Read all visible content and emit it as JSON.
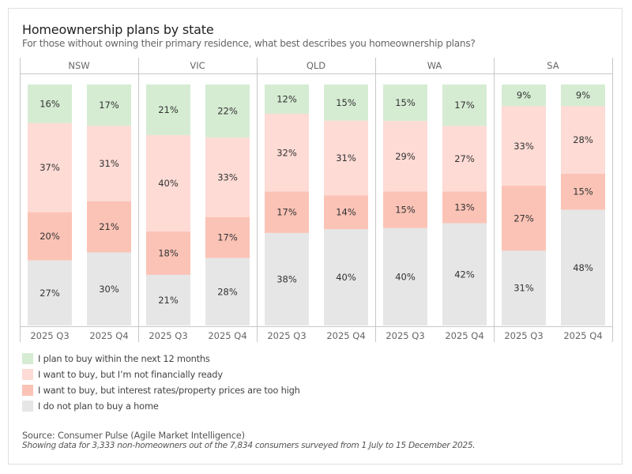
{
  "header": {
    "title": "Homeownership plans by state",
    "subtitle": "For those without owning their primary residence, what best describes you homeownership plans?"
  },
  "chart_data": {
    "type": "bar",
    "stacked": true,
    "normalized": true,
    "title": "Homeownership plans by state",
    "subtitle": "For those without owning their primary residence, what best describes you homeownership plans?",
    "xlabel": "",
    "ylabel": "",
    "ylim": [
      0,
      100
    ],
    "grid": false,
    "legend_position": "bottom-left",
    "panels": [
      "NSW",
      "VIC",
      "QLD",
      "WA",
      "SA"
    ],
    "categories": [
      "2025 Q3",
      "2025 Q4"
    ],
    "series": [
      {
        "name": "I plan to buy within the next 12 months",
        "color": "#d5ecd2",
        "values": {
          "NSW": [
            16,
            17
          ],
          "VIC": [
            21,
            22
          ],
          "QLD": [
            12,
            15
          ],
          "WA": [
            15,
            17
          ],
          "SA": [
            9,
            9
          ]
        }
      },
      {
        "name": "I want to buy, but I’m not financially ready",
        "color": "#fedbd5",
        "values": {
          "NSW": [
            37,
            31
          ],
          "VIC": [
            40,
            33
          ],
          "QLD": [
            32,
            31
          ],
          "WA": [
            29,
            27
          ],
          "SA": [
            33,
            28
          ]
        }
      },
      {
        "name": "I want to buy, but interest rates/property prices are too high",
        "color": "#fbc3b6",
        "values": {
          "NSW": [
            20,
            21
          ],
          "VIC": [
            18,
            17
          ],
          "QLD": [
            17,
            14
          ],
          "WA": [
            15,
            13
          ],
          "SA": [
            27,
            15
          ]
        }
      },
      {
        "name": "I do not plan to buy a home",
        "color": "#e6e6e6",
        "values": {
          "NSW": [
            27,
            30
          ],
          "VIC": [
            21,
            28
          ],
          "QLD": [
            38,
            40
          ],
          "WA": [
            40,
            42
          ],
          "SA": [
            31,
            48
          ]
        }
      }
    ]
  },
  "footer": {
    "source": "Source: Consumer Pulse (Agile Market Intelligence)",
    "note": "Showing data for 3,333 non-homeowners out of the 7,834 consumers surveyed from 1 July to 15 December 2025."
  },
  "colors": {
    "text_label": "#333333",
    "axis_text": "#666666",
    "divider": "#c8c8c8"
  }
}
